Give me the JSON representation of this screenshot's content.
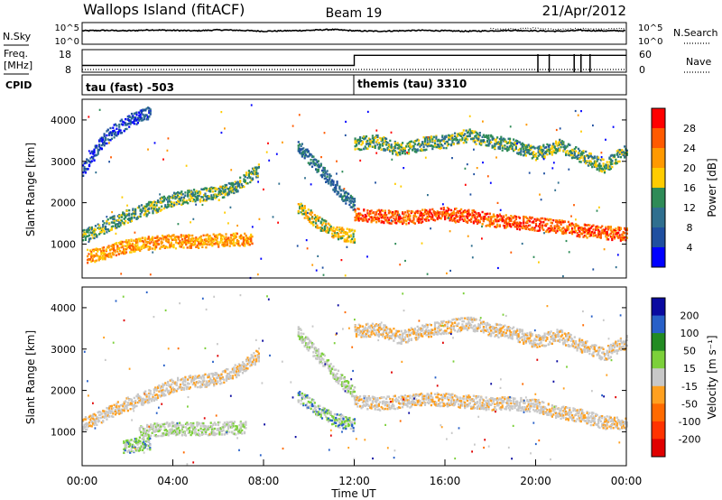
{
  "header": {
    "site": "Wallops Island (fitACF)",
    "beam": "Beam 19",
    "date": "21/Apr/2012"
  },
  "colors": {
    "axis": "#000000",
    "gray_scatter": "#c8c8c8",
    "background": "#ffffff"
  },
  "chart_data": [
    {
      "type": "line",
      "panel": "noise",
      "left_labels": [
        "N.Sky"
      ],
      "left_ticks": [
        "10^5",
        "10^0"
      ],
      "right_ticks": [
        "10^5",
        "10^0"
      ],
      "right_labels": [
        "N.Search"
      ],
      "series": [
        {
          "name": "N.Sky",
          "x": [
            0,
            1,
            2,
            3,
            4,
            5,
            6,
            7,
            8,
            9,
            10,
            11,
            12,
            13,
            14,
            15,
            16,
            17,
            18,
            19,
            20,
            21,
            22,
            23,
            24
          ],
          "y": [
            3.1,
            3.2,
            3.1,
            3.3,
            3.2,
            3.1,
            3.3,
            3.2,
            3.0,
            3.1,
            3.2,
            3.4,
            3.1,
            3.0,
            3.1,
            3.2,
            3.1,
            3.0,
            3.1,
            3.2,
            3.1,
            3.0,
            3.2,
            3.1,
            3.1
          ]
        },
        {
          "name": "N.Search",
          "x": [
            18,
            19,
            20,
            21,
            22,
            23,
            24
          ],
          "y": [
            3.6,
            3.5,
            3.7,
            3.4,
            3.6,
            3.5,
            3.6
          ]
        }
      ]
    },
    {
      "type": "line",
      "panel": "frequency",
      "left_labels": [
        "Freq.",
        "[MHz]",
        "CPID"
      ],
      "left_ticks": [
        "18",
        "8"
      ],
      "right_ticks": [
        "60",
        "0"
      ],
      "right_labels": [
        "Nave"
      ],
      "series": [
        {
          "name": "Freq.",
          "x": [
            0,
            12,
            12,
            24
          ],
          "y": [
            11,
            11,
            15.5,
            15.5
          ]
        },
        {
          "name": "Nave",
          "x": [
            0,
            24
          ],
          "y": [
            8,
            8
          ]
        }
      ],
      "cpid_segments": [
        {
          "label": "tau (fast) -503",
          "start": 0,
          "end": 12
        },
        {
          "label": "themis (tau) 3310",
          "start": 12,
          "end": 24
        }
      ]
    },
    {
      "type": "heatmap",
      "panel": "power",
      "ylabel": "Slant Range [km]",
      "yticks": [
        1000,
        2000,
        3000,
        4000
      ],
      "ylim": [
        180,
        4500
      ],
      "xlim": [
        0,
        24
      ],
      "colorbar": {
        "label": "Power [dB]",
        "ticks": [
          "28",
          "24",
          "20",
          "16",
          "12",
          "8",
          "4"
        ],
        "colors": [
          "#ff0000",
          "#ff5a00",
          "#ff9900",
          "#ffcc00",
          "#2e8b57",
          "#2f6f8f",
          "#1f4fa0",
          "#0000ff"
        ]
      },
      "echo_bands": [
        {
          "x": [
            0.2,
            1,
            2,
            3,
            4,
            5,
            6,
            7.5
          ],
          "range": [
            700,
            820,
            980,
            1050,
            1100,
            1080,
            1110,
            1150
          ],
          "level": 5
        },
        {
          "x": [
            0,
            1,
            2,
            3,
            4,
            5,
            6,
            7,
            7.8
          ],
          "range": [
            1200,
            1450,
            1700,
            1900,
            2100,
            2200,
            2250,
            2500,
            2850
          ],
          "level": 3
        },
        {
          "x": [
            0,
            0.5,
            1,
            1.5,
            2.2,
            3
          ],
          "range": [
            2800,
            3200,
            3600,
            3800,
            4050,
            4200
          ],
          "level": 1
        },
        {
          "x": [
            9.5,
            10,
            10.5,
            11,
            11.5,
            12
          ],
          "range": [
            1900,
            1700,
            1500,
            1350,
            1250,
            1200
          ],
          "level": 4
        },
        {
          "x": [
            9.5,
            10,
            10.5,
            11,
            11.5,
            12
          ],
          "range": [
            3400,
            3100,
            2800,
            2500,
            2200,
            1950
          ],
          "level": 2
        },
        {
          "x": [
            12,
            13,
            14,
            15,
            16,
            17,
            18,
            19,
            20,
            21,
            22,
            23,
            24
          ],
          "range": [
            1750,
            1700,
            1650,
            1700,
            1750,
            1700,
            1600,
            1550,
            1500,
            1450,
            1350,
            1300,
            1250
          ],
          "level": 6
        },
        {
          "x": [
            12,
            13,
            14,
            15,
            16,
            17,
            18,
            19,
            20,
            21,
            22,
            23,
            24
          ],
          "range": [
            3450,
            3500,
            3300,
            3450,
            3500,
            3650,
            3500,
            3400,
            3200,
            3400,
            3150,
            2900,
            3300
          ],
          "level": 3
        }
      ]
    },
    {
      "type": "heatmap",
      "panel": "velocity",
      "ylabel": "Slant Range [km]",
      "yticks": [
        1000,
        2000,
        3000,
        4000
      ],
      "ylim": [
        180,
        4500
      ],
      "xlim": [
        0,
        24
      ],
      "xticks": [
        "00:00",
        "04:00",
        "08:00",
        "12:00",
        "16:00",
        "20:00",
        "00:00"
      ],
      "xlabel": "Time UT",
      "colorbar": {
        "label": "Velocity [m s⁻¹]",
        "ticks": [
          "200",
          "100",
          "50",
          "15",
          "-15",
          "-50",
          "-100",
          "-200"
        ],
        "colors": [
          "#0a0aa0",
          "#2860c8",
          "#228b22",
          "#7cd03a",
          "#c8c8c8",
          "#ffa020",
          "#ff6a00",
          "#ff3300",
          "#e00000"
        ]
      },
      "echo_bands": [
        {
          "x": [
            2.5,
            3,
            4,
            5,
            6,
            7.2
          ],
          "range": [
            1000,
            1060,
            1100,
            1090,
            1100,
            1120
          ],
          "level": 3
        },
        {
          "x": [
            0,
            1,
            2,
            3,
            4,
            5,
            6,
            7,
            7.8
          ],
          "range": [
            1200,
            1450,
            1700,
            1900,
            2150,
            2250,
            2300,
            2550,
            2900
          ],
          "level": 4
        },
        {
          "x": [
            1.8,
            2.3,
            3
          ],
          "range": [
            640,
            700,
            760
          ],
          "level": 2
        },
        {
          "x": [
            9.5,
            10,
            10.5,
            11,
            11.5,
            12
          ],
          "range": [
            1900,
            1700,
            1500,
            1350,
            1250,
            1200
          ],
          "level": 2
        },
        {
          "x": [
            9.5,
            10,
            10.5,
            11,
            11.5,
            12
          ],
          "range": [
            3400,
            3100,
            2800,
            2500,
            2200,
            1950
          ],
          "level": 3
        },
        {
          "x": [
            12,
            13,
            14,
            15,
            16,
            17,
            18,
            19,
            20,
            21,
            22,
            23,
            24
          ],
          "range": [
            1750,
            1700,
            1750,
            1800,
            1800,
            1750,
            1700,
            1700,
            1650,
            1500,
            1400,
            1250,
            1200
          ],
          "level": 4
        },
        {
          "x": [
            12,
            13,
            14,
            15,
            16,
            17,
            18,
            19,
            20,
            21,
            22,
            23,
            24
          ],
          "range": [
            3450,
            3500,
            3300,
            3450,
            3550,
            3650,
            3500,
            3400,
            3200,
            3350,
            3100,
            2900,
            3200
          ],
          "level": 4
        }
      ]
    }
  ]
}
